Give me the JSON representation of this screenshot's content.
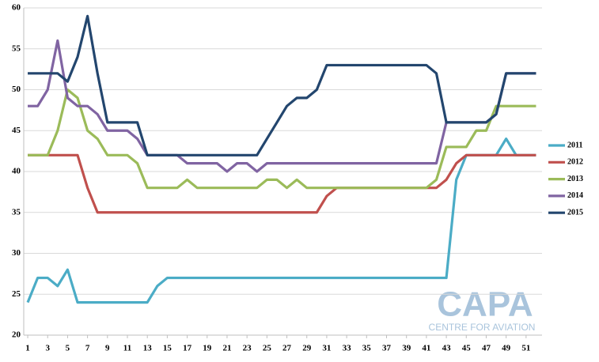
{
  "chart_data": {
    "type": "line",
    "x": [
      1,
      2,
      3,
      4,
      5,
      6,
      7,
      8,
      9,
      10,
      11,
      12,
      13,
      14,
      15,
      16,
      17,
      18,
      19,
      20,
      21,
      22,
      23,
      24,
      25,
      26,
      27,
      28,
      29,
      30,
      31,
      32,
      33,
      34,
      35,
      36,
      37,
      38,
      39,
      40,
      41,
      42,
      43,
      44,
      45,
      46,
      47,
      48,
      49,
      50,
      51,
      52
    ],
    "xlim": [
      0.6,
      52.6
    ],
    "xticks": [
      1,
      3,
      5,
      7,
      9,
      11,
      13,
      15,
      17,
      19,
      21,
      23,
      25,
      27,
      29,
      31,
      33,
      35,
      37,
      39,
      41,
      43,
      45,
      47,
      49,
      51
    ],
    "ylim": [
      20,
      60
    ],
    "yticks": [
      20,
      25,
      30,
      35,
      40,
      45,
      50,
      55,
      60
    ],
    "grid": true,
    "legend": "right",
    "series": [
      {
        "name": "2011",
        "color": "#4bacc6",
        "values": [
          24,
          27,
          27,
          26,
          28,
          24,
          24,
          24,
          24,
          24,
          24,
          24,
          24,
          26,
          27,
          27,
          27,
          27,
          27,
          27,
          27,
          27,
          27,
          27,
          27,
          27,
          27,
          27,
          27,
          27,
          27,
          27,
          27,
          27,
          27,
          27,
          27,
          27,
          27,
          27,
          27,
          27,
          27,
          39,
          42,
          42,
          42,
          42,
          44,
          42,
          42,
          42
        ]
      },
      {
        "name": "2012",
        "color": "#c0504d",
        "values": [
          42,
          42,
          42,
          42,
          42,
          42,
          38,
          35,
          35,
          35,
          35,
          35,
          35,
          35,
          35,
          35,
          35,
          35,
          35,
          35,
          35,
          35,
          35,
          35,
          35,
          35,
          35,
          35,
          35,
          35,
          37,
          38,
          38,
          38,
          38,
          38,
          38,
          38,
          38,
          38,
          38,
          38,
          39,
          41,
          42,
          42,
          42,
          42,
          42,
          42,
          42,
          42
        ]
      },
      {
        "name": "2013",
        "color": "#9bbb59",
        "values": [
          42,
          42,
          42,
          45,
          50,
          49,
          45,
          44,
          42,
          42,
          42,
          41,
          38,
          38,
          38,
          38,
          39,
          38,
          38,
          38,
          38,
          38,
          38,
          38,
          39,
          39,
          38,
          39,
          38,
          38,
          38,
          38,
          38,
          38,
          38,
          38,
          38,
          38,
          38,
          38,
          38,
          39,
          43,
          43,
          43,
          45,
          45,
          48,
          48,
          48,
          48,
          48
        ]
      },
      {
        "name": "2014",
        "color": "#8064a2",
        "values": [
          48,
          48,
          50,
          56,
          49,
          48,
          48,
          47,
          45,
          45,
          45,
          44,
          42,
          42,
          42,
          42,
          41,
          41,
          41,
          41,
          40,
          41,
          41,
          40,
          41,
          41,
          41,
          41,
          41,
          41,
          41,
          41,
          41,
          41,
          41,
          41,
          41,
          41,
          41,
          41,
          41,
          41,
          46,
          46,
          46,
          46,
          46,
          47,
          52,
          52,
          52,
          52
        ]
      },
      {
        "name": "2015",
        "color": "#23466e",
        "values": [
          52,
          52,
          52,
          52,
          51,
          54,
          59,
          52,
          46,
          46,
          46,
          46,
          42,
          42,
          42,
          42,
          42,
          42,
          42,
          42,
          42,
          42,
          42,
          42,
          44,
          46,
          48,
          49,
          49,
          50,
          53,
          53,
          53,
          53,
          53,
          53,
          53,
          53,
          53,
          53,
          53,
          52,
          46,
          46,
          46,
          46,
          46,
          47,
          52,
          52,
          52,
          52
        ]
      }
    ],
    "watermark": {
      "title": "CAPA",
      "subtitle": "CENTRE FOR AVIATION"
    }
  }
}
